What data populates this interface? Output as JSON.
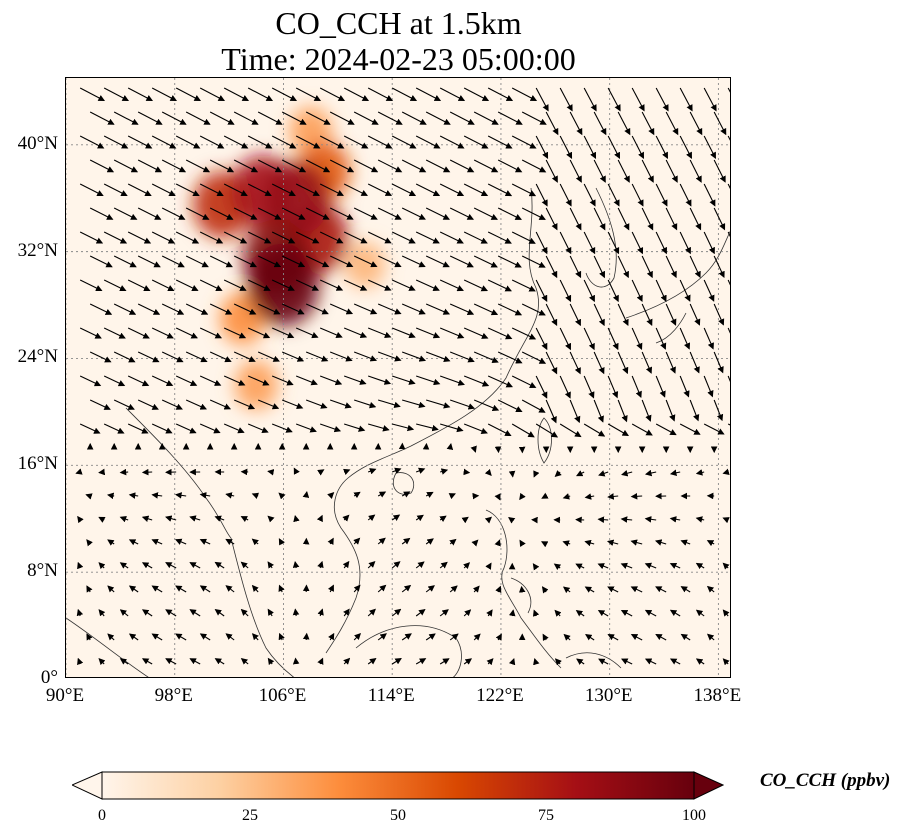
{
  "title_line1": "CO_CCH at 1.5km",
  "title_line2": "Time: 2024-02-23 05:00:00",
  "map": {
    "lon_range": [
      90,
      139
    ],
    "lat_range": [
      0,
      45
    ],
    "lat_ticks": [
      {
        "value": 40,
        "label": "40°N"
      },
      {
        "value": 32,
        "label": "32°N"
      },
      {
        "value": 24,
        "label": "24°N"
      },
      {
        "value": 16,
        "label": "16°N"
      },
      {
        "value": 8,
        "label": "8°N"
      },
      {
        "value": 0,
        "label": "0°"
      }
    ],
    "lon_ticks": [
      {
        "value": 90,
        "label": "90°E"
      },
      {
        "value": 98,
        "label": "98°E"
      },
      {
        "value": 106,
        "label": "106°E"
      },
      {
        "value": 114,
        "label": "114°E"
      },
      {
        "value": 122,
        "label": "122°E"
      },
      {
        "value": 130,
        "label": "130°E"
      },
      {
        "value": 138,
        "label": "138°E"
      }
    ],
    "gridlines": true,
    "field_hotspots": [
      {
        "lon": 107,
        "lat": 36,
        "value": 85
      },
      {
        "lon": 104.5,
        "lat": 36.5,
        "value": 80
      },
      {
        "lon": 108.5,
        "lat": 33,
        "value": 78
      },
      {
        "lon": 106,
        "lat": 29.5,
        "value": 100
      },
      {
        "lon": 105.5,
        "lat": 31.5,
        "value": 90
      },
      {
        "lon": 101.5,
        "lat": 35.5,
        "value": 70
      },
      {
        "lon": 109,
        "lat": 38,
        "value": 55
      },
      {
        "lon": 108,
        "lat": 41,
        "value": 35
      },
      {
        "lon": 104,
        "lat": 22,
        "value": 35
      },
      {
        "lon": 103,
        "lat": 27,
        "value": 40
      },
      {
        "lon": 112,
        "lat": 31,
        "value": 28
      }
    ]
  },
  "colorbar": {
    "label": "CO_CCH (ppbv)",
    "min": 0,
    "max": 100,
    "colors": [
      "#fff5eb",
      "#fdd0a2",
      "#fd8d3c",
      "#d94801",
      "#a50f15",
      "#67000d"
    ],
    "ticks": [
      {
        "value": 0,
        "label": "0"
      },
      {
        "value": 25,
        "label": "25"
      },
      {
        "value": 50,
        "label": "50"
      },
      {
        "value": 75,
        "label": "75"
      },
      {
        "value": 100,
        "label": "100"
      }
    ]
  }
}
